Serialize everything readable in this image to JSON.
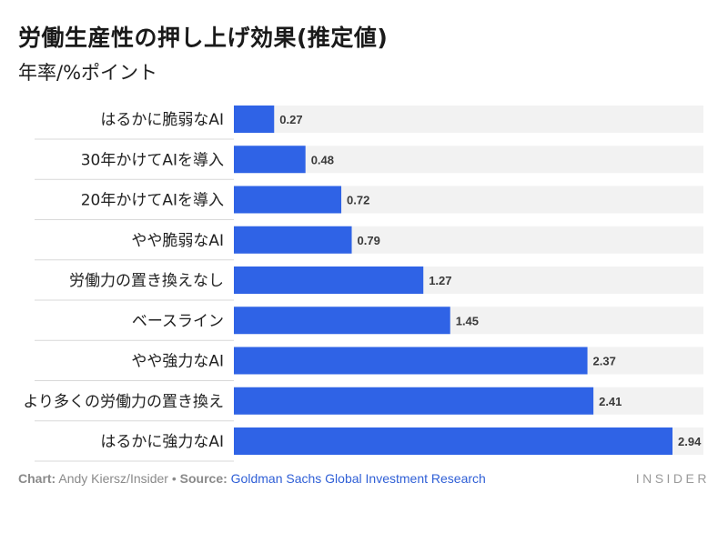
{
  "header": {
    "title": "労働生産性の押し上げ効果(推定値)",
    "subtitle": "年率/%ポイント"
  },
  "chart_data": {
    "type": "bar",
    "orientation": "horizontal",
    "categories": [
      "はるかに脆弱なAI",
      "30年かけてAIを導入",
      "20年かけてAIを導入",
      "やや脆弱なAI",
      "労働力の置き換えなし",
      "ベースライン",
      "やや強力なAI",
      "より多くの労働力の置き換え",
      "はるかに強力なAI"
    ],
    "values": [
      0.27,
      0.48,
      0.72,
      0.79,
      1.27,
      1.45,
      2.37,
      2.41,
      2.94
    ],
    "value_labels": [
      "0.27",
      "0.48",
      "0.72",
      "0.79",
      "1.27",
      "1.45",
      "2.37",
      "2.41",
      "2.94"
    ],
    "xlim": [
      0,
      3.0
    ],
    "bar_color": "#2f63e6",
    "track_color": "#f2f2f2",
    "grid": false
  },
  "footer": {
    "chart_label": "Chart:",
    "chart_credit": "Andy Kiersz/Insider",
    "bullet": "•",
    "source_label": "Source:",
    "source_name": "Goldman Sachs Global Investment Research",
    "brand": "INSIDER"
  }
}
